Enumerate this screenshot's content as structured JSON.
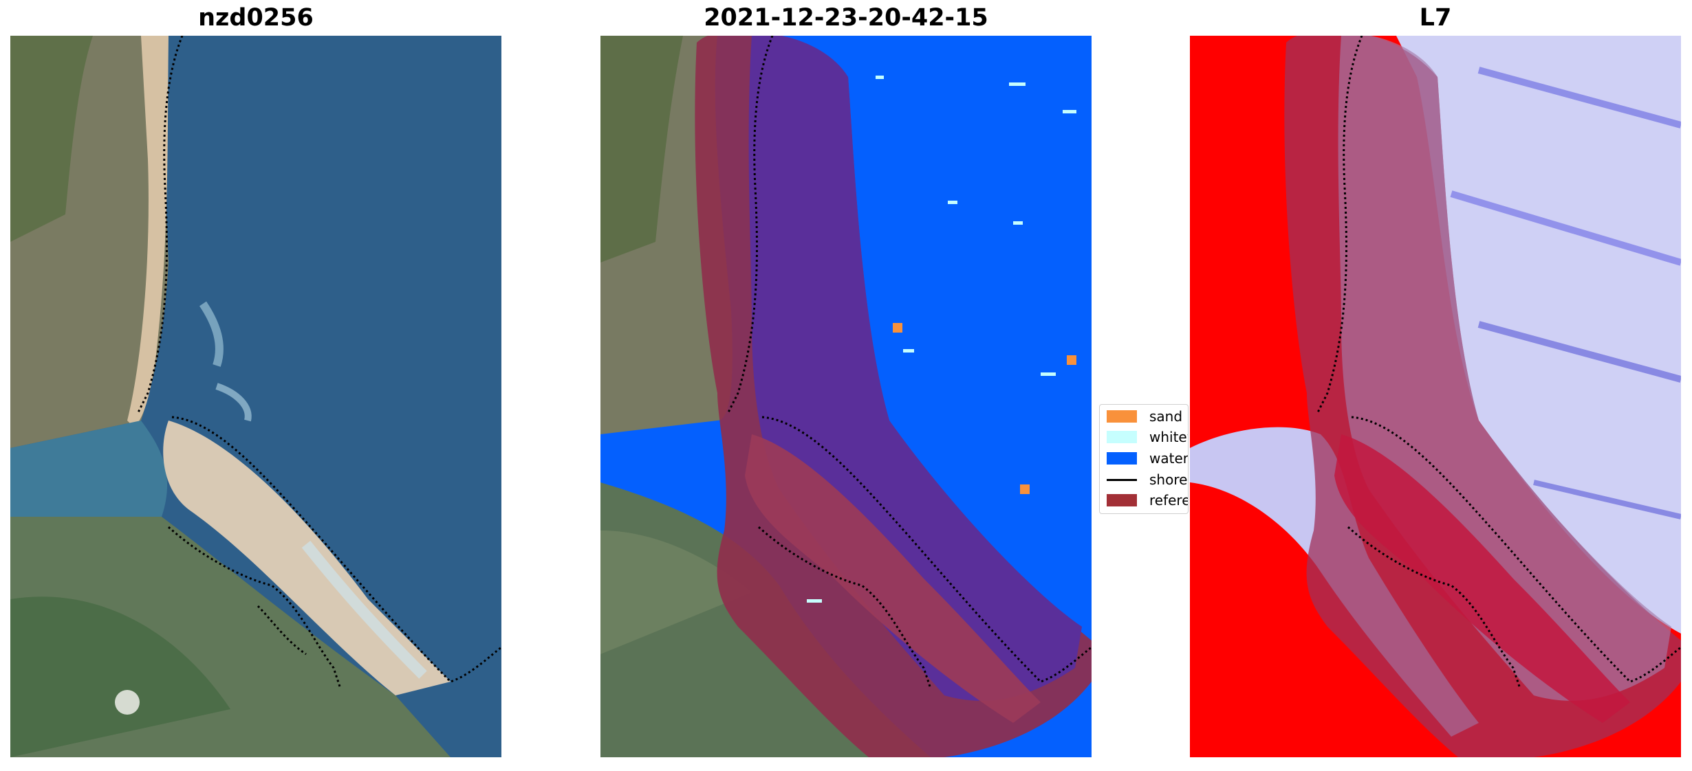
{
  "panels": [
    {
      "title": "nzd0256"
    },
    {
      "title": "2021-12-23-20-42-15"
    },
    {
      "title": "L7"
    }
  ],
  "legend": {
    "items": [
      {
        "label": "sand",
        "color": "#f9913b",
        "kind": "patch"
      },
      {
        "label": "whitew",
        "color": "#c6fefe",
        "kind": "patch"
      },
      {
        "label": "water",
        "color": "#0460fe",
        "kind": "patch"
      },
      {
        "label": "shorel",
        "color": "#000000",
        "kind": "line"
      },
      {
        "label": "referen",
        "color": "#a22f36",
        "kind": "patch"
      }
    ]
  },
  "colors": {
    "satellite_water": "#2a5a86",
    "satellite_land": "#6f7c5e",
    "satellite_sand": "#d9c4a8",
    "classified_water": "#0460fe",
    "reference_overlay": "#a22f36",
    "index_positive": "#ff0000",
    "index_negative": "#c8c8f4"
  }
}
